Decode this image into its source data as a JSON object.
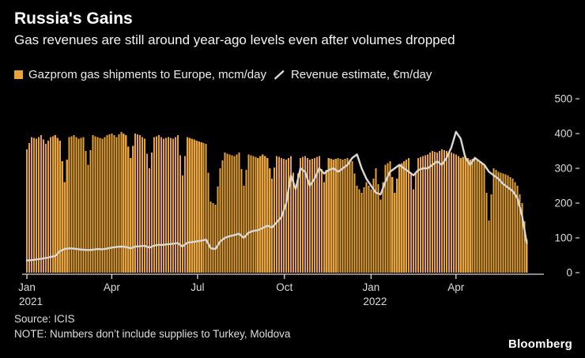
{
  "header": {
    "title": "Russia's Gains",
    "subtitle": "Gas revenues are still around year-ago levels even after volumes dropped"
  },
  "legend": {
    "items": [
      {
        "label": "Gazprom gas shipments to Europe, mcm/day",
        "swatch": "square",
        "color": "#E8A33B"
      },
      {
        "label": "Revenue estimate, €m/day",
        "swatch": "line",
        "color": "#D8D8D8"
      }
    ]
  },
  "footer": {
    "source": "Source: ICIS",
    "note": "NOTE: Numbers don’t include supplies to Turkey, Moldova",
    "brand": "Bloomberg"
  },
  "colors": {
    "background": "#000000",
    "bars": "#E8A33B",
    "line": "#D8D8D8",
    "axis_text": "#dcdcdc"
  },
  "chart_data": {
    "type": "bar",
    "subtype": "bar-with-line-overlay",
    "title": "Russia's Gains",
    "x_unit": "days since 2021-01-01",
    "x_step_days": 5,
    "x_range_days": [
      0,
      530
    ],
    "ylim": [
      0,
      500
    ],
    "y_ticks": [
      0,
      100,
      200,
      300,
      400,
      500
    ],
    "grid": false,
    "y_axis_side": "right",
    "x_ticks": [
      {
        "day": 0,
        "label": "Jan",
        "sublabel": "2021"
      },
      {
        "day": 90,
        "label": "Apr"
      },
      {
        "day": 181,
        "label": "Jul"
      },
      {
        "day": 273,
        "label": "Oct"
      },
      {
        "day": 365,
        "label": "Jan",
        "sublabel": "2022"
      },
      {
        "day": 455,
        "label": "Apr"
      }
    ],
    "series": [
      {
        "name": "Gazprom gas shipments to Europe, mcm/day",
        "type": "bar",
        "color": "#E8A33B",
        "values": [
          355,
          390,
          385,
          395,
          370,
          390,
          395,
          380,
          260,
          390,
          395,
          385,
          390,
          310,
          395,
          390,
          385,
          395,
          400,
          390,
          405,
          395,
          330,
          400,
          395,
          385,
          300,
          390,
          395,
          385,
          390,
          385,
          395,
          280,
          390,
          385,
          380,
          375,
          370,
          205,
          195,
          300,
          345,
          340,
          335,
          345,
          250,
          340,
          335,
          330,
          340,
          330,
          270,
          335,
          330,
          325,
          335,
          240,
          330,
          335,
          325,
          330,
          335,
          260,
          330,
          325,
          330,
          325,
          330,
          320,
          250,
          230,
          260,
          240,
          300,
          210,
          310,
          320,
          230,
          310,
          320,
          330,
          240,
          330,
          335,
          340,
          350,
          345,
          355,
          350,
          345,
          340,
          330,
          335,
          325,
          330,
          320,
          310,
          150,
          300,
          290,
          285,
          280,
          270,
          250,
          200,
          95
        ]
      },
      {
        "name": "Revenue estimate, €m/day",
        "type": "line",
        "color": "#D8D8D8",
        "values": [
          35,
          36,
          38,
          40,
          42,
          45,
          48,
          62,
          68,
          70,
          69,
          67,
          66,
          65,
          66,
          68,
          67,
          69,
          72,
          74,
          75,
          74,
          70,
          75,
          76,
          77,
          72,
          78,
          80,
          80,
          82,
          83,
          85,
          75,
          86,
          88,
          90,
          92,
          95,
          70,
          68,
          90,
          100,
          105,
          108,
          112,
          100,
          115,
          120,
          122,
          128,
          135,
          130,
          145,
          160,
          200,
          280,
          240,
          300,
          290,
          250,
          270,
          300,
          285,
          295,
          300,
          290,
          300,
          310,
          330,
          340,
          300,
          270,
          250,
          230,
          225,
          260,
          290,
          300,
          310,
          300,
          290,
          280,
          295,
          300,
          300,
          310,
          320,
          310,
          330,
          360,
          405,
          385,
          330,
          310,
          330,
          320,
          310,
          290,
          280,
          270,
          255,
          245,
          235,
          215,
          165,
          85
        ]
      }
    ]
  }
}
